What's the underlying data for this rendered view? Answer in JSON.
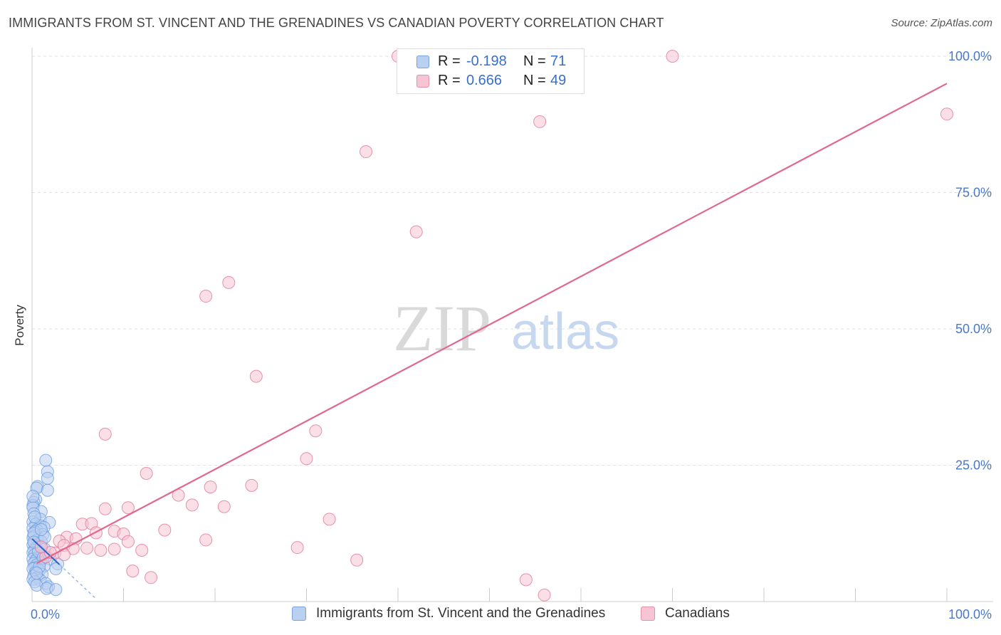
{
  "title": "IMMIGRANTS FROM ST. VINCENT AND THE GRENADINES VS CANADIAN POVERTY CORRELATION CHART",
  "source": "Source: ZipAtlas.com",
  "watermark": {
    "zip": "ZIP",
    "atlas": "atlas"
  },
  "legend_top": {
    "rows": [
      {
        "r_label": "R =",
        "r_value": "-0.198",
        "n_label": "N =",
        "n_value": "71",
        "color": "#b9d0f0"
      },
      {
        "r_label": "R =",
        "r_value": "0.666",
        "n_label": "N =",
        "n_value": "49",
        "color": "#f7c4d3"
      }
    ]
  },
  "legend_bottom": {
    "items": [
      {
        "label": "Immigrants from St. Vincent and the Grenadines",
        "color": "#b9d0f0"
      },
      {
        "label": "Canadians",
        "color": "#f7c4d3"
      }
    ]
  },
  "chart_data": {
    "type": "scatter",
    "title": "IMMIGRANTS FROM ST. VINCENT AND THE GRENADINES VS CANADIAN POVERTY CORRELATION CHART",
    "xlabel": "",
    "ylabel": "Poverty",
    "xlim": [
      0,
      100
    ],
    "ylim": [
      0,
      100
    ],
    "x_tick_labels": [
      "0.0%",
      "100.0%"
    ],
    "y_tick_labels": [
      "25.0%",
      "50.0%",
      "75.0%",
      "100.0%"
    ],
    "y_ticks": [
      25,
      50,
      75,
      100
    ],
    "grid": true,
    "series": [
      {
        "name": "Immigrants from St. Vincent and the Grenadines",
        "color": "#6f9ee0",
        "fill": "#b9d0f0",
        "r": -0.198,
        "n": 71,
        "trend": {
          "x0": 0,
          "y0": 11.5,
          "x1": 7,
          "y1": 0.5,
          "style": "dashed-after",
          "solid_until_x": 3
        },
        "points": [
          [
            1.5,
            25.9
          ],
          [
            1.7,
            23.8
          ],
          [
            1.7,
            22.6
          ],
          [
            0.6,
            21.1
          ],
          [
            0.5,
            20.8
          ],
          [
            1.7,
            20.4
          ],
          [
            0.4,
            18.7
          ],
          [
            0.2,
            18.2
          ],
          [
            0.1,
            17.6
          ],
          [
            0.1,
            17.2
          ],
          [
            1.0,
            16.5
          ],
          [
            0.2,
            16.1
          ],
          [
            0.9,
            15.1
          ],
          [
            1.9,
            14.5
          ],
          [
            0.1,
            14.6
          ],
          [
            0.4,
            14.2
          ],
          [
            0.9,
            13.9
          ],
          [
            1.3,
            13.6
          ],
          [
            0.1,
            13.4
          ],
          [
            0.5,
            13.1
          ],
          [
            0.3,
            12.8
          ],
          [
            1.2,
            12.3
          ],
          [
            0.2,
            12.0
          ],
          [
            0.1,
            11.7
          ],
          [
            0.6,
            11.3
          ],
          [
            1.0,
            11.0
          ],
          [
            0.3,
            10.7
          ],
          [
            0.1,
            10.4
          ],
          [
            0.8,
            10.1
          ],
          [
            0.4,
            9.8
          ],
          [
            1.4,
            9.6
          ],
          [
            0.2,
            9.4
          ],
          [
            0.1,
            9.0
          ],
          [
            0.9,
            8.8
          ],
          [
            0.3,
            8.6
          ],
          [
            1.1,
            8.3
          ],
          [
            0.6,
            8.0
          ],
          [
            0.1,
            7.8
          ],
          [
            0.4,
            7.5
          ],
          [
            2.0,
            7.8
          ],
          [
            0.9,
            7.2
          ],
          [
            0.2,
            7.0
          ],
          [
            0.5,
            6.7
          ],
          [
            2.8,
            6.9
          ],
          [
            1.3,
            6.5
          ],
          [
            0.3,
            6.2
          ],
          [
            0.1,
            6.0
          ],
          [
            2.6,
            6.0
          ],
          [
            0.8,
            5.7
          ],
          [
            0.4,
            5.4
          ],
          [
            1.1,
            5.0
          ],
          [
            0.2,
            4.7
          ],
          [
            0.6,
            4.4
          ],
          [
            0.1,
            4.1
          ],
          [
            0.9,
            3.9
          ],
          [
            0.3,
            3.6
          ],
          [
            1.5,
            3.3
          ],
          [
            0.5,
            3.0
          ],
          [
            1.8,
            2.7
          ],
          [
            1.6,
            2.4
          ],
          [
            2.6,
            2.2
          ],
          [
            0.2,
            12.5
          ],
          [
            0.7,
            9.2
          ],
          [
            1.2,
            8.0
          ],
          [
            0.3,
            15.5
          ],
          [
            0.1,
            19.3
          ],
          [
            1.4,
            11.8
          ],
          [
            0.8,
            6.4
          ],
          [
            0.2,
            10.9
          ],
          [
            0.5,
            5.2
          ],
          [
            1.0,
            13.2
          ]
        ]
      },
      {
        "name": "Canadians",
        "color": "#e0789c",
        "fill": "#f7c4d3",
        "r": 0.666,
        "n": 49,
        "trend": {
          "x0": 0.5,
          "y0": 7.0,
          "x1": 100,
          "y1": 95.0
        },
        "points": [
          [
            40.0,
            100.0
          ],
          [
            70.0,
            100.0
          ],
          [
            55.5,
            88.0
          ],
          [
            100.0,
            89.4
          ],
          [
            36.5,
            82.5
          ],
          [
            42.0,
            67.8
          ],
          [
            21.5,
            58.5
          ],
          [
            19.0,
            56.0
          ],
          [
            24.5,
            41.3
          ],
          [
            8.0,
            30.7
          ],
          [
            31.0,
            31.3
          ],
          [
            30.0,
            26.2
          ],
          [
            12.5,
            23.5
          ],
          [
            19.5,
            21.0
          ],
          [
            24.0,
            21.3
          ],
          [
            16.0,
            19.5
          ],
          [
            10.5,
            17.2
          ],
          [
            8.0,
            17.0
          ],
          [
            17.5,
            17.7
          ],
          [
            21.0,
            17.4
          ],
          [
            32.5,
            15.1
          ],
          [
            5.5,
            14.2
          ],
          [
            6.5,
            14.3
          ],
          [
            14.5,
            13.1
          ],
          [
            9.0,
            12.9
          ],
          [
            7.0,
            12.6
          ],
          [
            10.0,
            12.4
          ],
          [
            3.8,
            11.8
          ],
          [
            4.8,
            11.5
          ],
          [
            3.0,
            11.1
          ],
          [
            10.5,
            11.0
          ],
          [
            19.0,
            11.3
          ],
          [
            3.5,
            10.3
          ],
          [
            6.0,
            9.8
          ],
          [
            9.0,
            9.6
          ],
          [
            4.5,
            9.7
          ],
          [
            7.5,
            9.4
          ],
          [
            12.0,
            9.4
          ],
          [
            29.0,
            9.9
          ],
          [
            2.5,
            8.9
          ],
          [
            3.5,
            8.6
          ],
          [
            1.5,
            8.2
          ],
          [
            35.5,
            7.6
          ],
          [
            11.0,
            5.6
          ],
          [
            13.0,
            4.4
          ],
          [
            54.0,
            4.0
          ],
          [
            56.0,
            1.2
          ],
          [
            2.0,
            9.0
          ],
          [
            1.0,
            10.0
          ]
        ]
      }
    ]
  }
}
